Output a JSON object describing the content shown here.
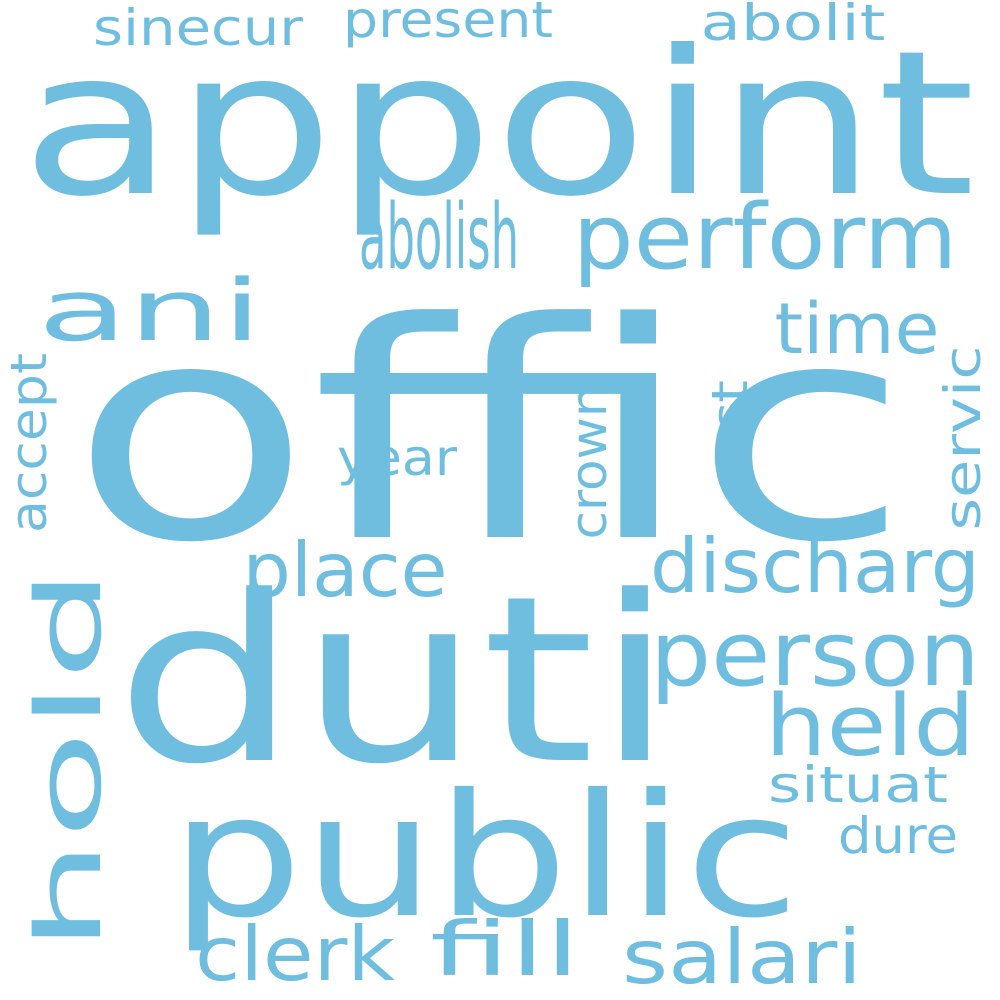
{
  "word_color": "#6fbedf",
  "background_color": "#ffffff",
  "words": [
    {
      "text": "offic"
    },
    {
      "text": "duti"
    },
    {
      "text": "appoint"
    },
    {
      "text": "public"
    },
    {
      "text": "perform"
    },
    {
      "text": "person"
    },
    {
      "text": "abolish"
    },
    {
      "text": "ani"
    },
    {
      "text": "held"
    },
    {
      "text": "hold"
    },
    {
      "text": "discharg"
    },
    {
      "text": "salari"
    },
    {
      "text": "place"
    },
    {
      "text": "clerk"
    },
    {
      "text": "fill"
    },
    {
      "text": "time"
    },
    {
      "text": "crown"
    },
    {
      "text": "servic"
    },
    {
      "text": "accept"
    },
    {
      "text": "present"
    },
    {
      "text": "sinecur"
    },
    {
      "text": "abolit"
    },
    {
      "text": "year"
    },
    {
      "text": "act"
    },
    {
      "text": "situat"
    },
    {
      "text": "dure"
    }
  ]
}
